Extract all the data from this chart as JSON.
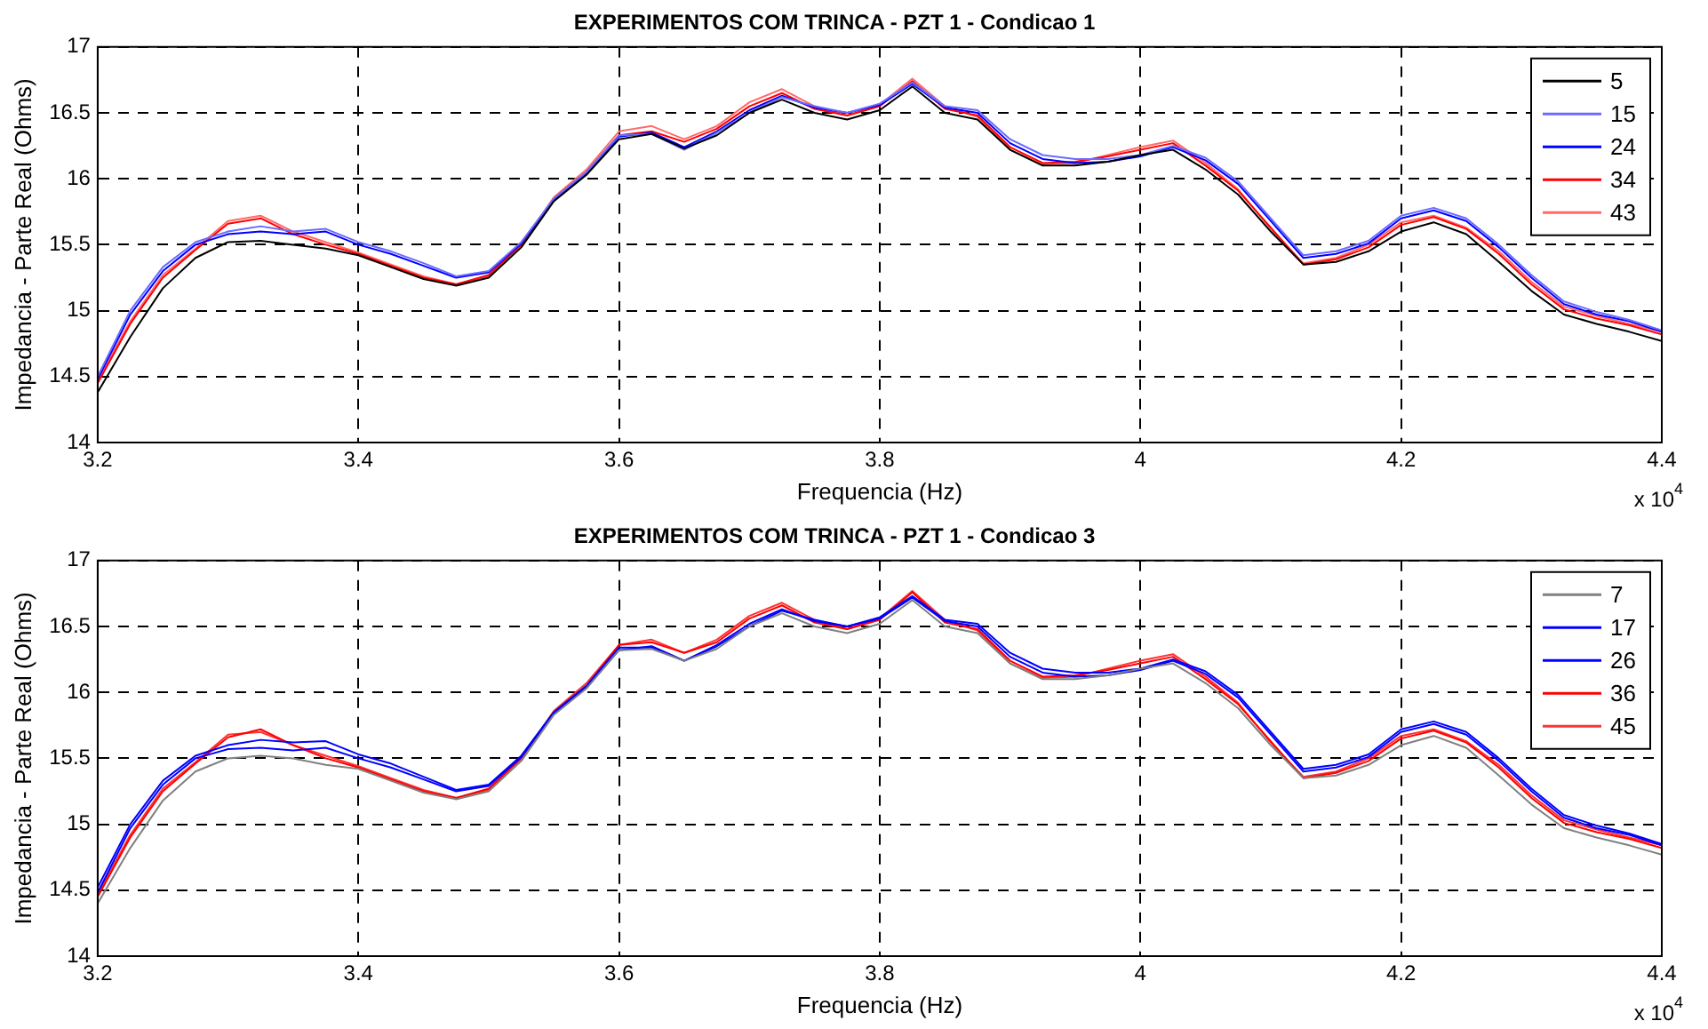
{
  "chart_data": [
    {
      "type": "line",
      "title": "EXPERIMENTOS COM TRINCA - PZT 1 - Condicao 1",
      "xlabel": "Frequencia (Hz)",
      "ylabel": "Impedancia - Parte Real (Ohms)",
      "x": [
        3.2,
        3.225,
        3.25,
        3.275,
        3.3,
        3.325,
        3.35,
        3.375,
        3.4,
        3.425,
        3.45,
        3.475,
        3.5,
        3.525,
        3.55,
        3.575,
        3.6,
        3.625,
        3.65,
        3.675,
        3.7,
        3.725,
        3.75,
        3.775,
        3.8,
        3.825,
        3.85,
        3.875,
        3.9,
        3.925,
        3.95,
        3.975,
        4,
        4.025,
        4.05,
        4.075,
        4.1,
        4.125,
        4.15,
        4.175,
        4.2,
        4.225,
        4.25,
        4.275,
        4.3,
        4.325,
        4.35,
        4.375,
        4.4
      ],
      "series": [
        {
          "name": "5",
          "color": "#000000",
          "values": [
            14.38,
            14.8,
            15.17,
            15.4,
            15.52,
            15.53,
            15.5,
            15.47,
            15.42,
            15.33,
            15.24,
            15.19,
            15.25,
            15.48,
            15.83,
            16.03,
            16.3,
            16.34,
            16.23,
            16.33,
            16.5,
            16.6,
            16.5,
            16.45,
            16.52,
            16.7,
            16.5,
            16.45,
            16.22,
            16.1,
            16.1,
            16.13,
            16.18,
            16.22,
            16.07,
            15.88,
            15.6,
            15.35,
            15.37,
            15.45,
            15.6,
            15.67,
            15.58,
            15.37,
            15.15,
            14.97,
            14.9,
            14.84,
            14.77
          ]
        },
        {
          "name": "15",
          "color": "#6b6bff",
          "values": [
            14.5,
            15.0,
            15.33,
            15.52,
            15.6,
            15.64,
            15.6,
            15.62,
            15.52,
            15.45,
            15.36,
            15.26,
            15.3,
            15.52,
            15.85,
            16.05,
            16.33,
            16.34,
            16.22,
            16.35,
            16.5,
            16.62,
            16.55,
            16.5,
            16.57,
            16.73,
            16.55,
            16.52,
            16.3,
            16.18,
            16.15,
            16.15,
            16.18,
            16.25,
            16.16,
            15.98,
            15.7,
            15.42,
            15.45,
            15.53,
            15.72,
            15.78,
            15.7,
            15.5,
            15.27,
            15.07,
            14.99,
            14.93,
            14.85
          ]
        },
        {
          "name": "24",
          "color": "#0000ff",
          "values": [
            14.48,
            14.97,
            15.3,
            15.5,
            15.58,
            15.6,
            15.58,
            15.6,
            15.5,
            15.43,
            15.34,
            15.25,
            15.29,
            15.51,
            15.84,
            16.04,
            16.32,
            16.35,
            16.24,
            16.36,
            16.52,
            16.63,
            16.54,
            16.5,
            16.56,
            16.72,
            16.54,
            16.5,
            16.27,
            16.15,
            16.12,
            16.13,
            16.17,
            16.24,
            16.14,
            15.96,
            15.68,
            15.4,
            15.43,
            15.51,
            15.7,
            15.76,
            15.68,
            15.48,
            15.25,
            15.05,
            14.97,
            14.92,
            14.84
          ]
        },
        {
          "name": "34",
          "color": "#ff0000",
          "values": [
            14.45,
            14.9,
            15.25,
            15.46,
            15.66,
            15.7,
            15.58,
            15.5,
            15.43,
            15.34,
            15.25,
            15.2,
            15.27,
            15.5,
            15.85,
            16.05,
            16.33,
            16.36,
            16.28,
            16.38,
            16.55,
            16.65,
            16.53,
            16.48,
            16.55,
            16.74,
            16.53,
            16.48,
            16.24,
            16.12,
            16.13,
            16.17,
            16.22,
            16.27,
            16.1,
            15.91,
            15.63,
            15.35,
            15.39,
            15.48,
            15.65,
            15.71,
            15.62,
            15.43,
            15.2,
            15.01,
            14.94,
            14.89,
            14.82
          ]
        },
        {
          "name": "43",
          "color": "#ff6b6b",
          "values": [
            14.47,
            14.92,
            15.27,
            15.47,
            15.68,
            15.72,
            15.6,
            15.52,
            15.44,
            15.35,
            15.26,
            15.2,
            15.26,
            15.5,
            15.86,
            16.07,
            16.36,
            16.4,
            16.3,
            16.4,
            16.58,
            16.68,
            16.55,
            16.48,
            16.56,
            16.76,
            16.55,
            16.47,
            16.22,
            16.11,
            16.12,
            16.18,
            16.24,
            16.29,
            16.12,
            15.92,
            15.62,
            15.36,
            15.4,
            15.5,
            15.67,
            15.72,
            15.63,
            15.45,
            15.22,
            15.03,
            14.96,
            14.9,
            14.84
          ]
        }
      ],
      "xlim": [
        3.2,
        4.4
      ],
      "xticks": [
        3.2,
        3.4,
        3.6,
        3.8,
        4,
        4.2,
        4.4
      ],
      "ylim": [
        14,
        17
      ],
      "yticks": [
        14,
        14.5,
        15,
        15.5,
        16,
        16.5,
        17
      ],
      "grid": true,
      "legend": "top right",
      "marker": "none",
      "line_style": "solid",
      "annotations": [
        "x 10$^{4}$"
      ]
    },
    {
      "type": "line",
      "title": "EXPERIMENTOS COM TRINCA - PZT 1 - Condicao 3",
      "xlabel": "Frequencia (Hz)",
      "ylabel": "Impedancia - Parte Real (Ohms)",
      "x": [
        3.2,
        3.225,
        3.25,
        3.275,
        3.3,
        3.325,
        3.35,
        3.375,
        3.4,
        3.425,
        3.45,
        3.475,
        3.5,
        3.525,
        3.55,
        3.575,
        3.6,
        3.625,
        3.65,
        3.675,
        3.7,
        3.725,
        3.75,
        3.775,
        3.8,
        3.825,
        3.85,
        3.875,
        3.9,
        3.925,
        3.95,
        3.975,
        4,
        4.025,
        4.05,
        4.075,
        4.1,
        4.125,
        4.15,
        4.175,
        4.2,
        4.225,
        4.25,
        4.275,
        4.3,
        4.325,
        4.35,
        4.375,
        4.4
      ],
      "series": [
        {
          "name": "7",
          "color": "#808080",
          "values": [
            14.4,
            14.82,
            15.18,
            15.4,
            15.5,
            15.52,
            15.5,
            15.45,
            15.42,
            15.33,
            15.24,
            15.19,
            15.25,
            15.48,
            15.83,
            16.03,
            16.32,
            16.33,
            16.24,
            16.33,
            16.5,
            16.6,
            16.5,
            16.45,
            16.52,
            16.7,
            16.5,
            16.45,
            16.22,
            16.1,
            16.1,
            16.13,
            16.18,
            16.22,
            16.07,
            15.88,
            15.6,
            15.35,
            15.37,
            15.45,
            15.6,
            15.67,
            15.58,
            15.37,
            15.15,
            14.97,
            14.9,
            14.84,
            14.77
          ]
        },
        {
          "name": "17",
          "color": "#0000ff",
          "values": [
            14.52,
            15.0,
            15.33,
            15.52,
            15.6,
            15.64,
            15.62,
            15.63,
            15.53,
            15.46,
            15.36,
            15.26,
            15.3,
            15.52,
            15.85,
            16.05,
            16.34,
            16.34,
            16.24,
            16.35,
            16.5,
            16.62,
            16.55,
            16.5,
            16.57,
            16.73,
            16.55,
            16.52,
            16.3,
            16.18,
            16.15,
            16.15,
            16.18,
            16.25,
            16.16,
            15.98,
            15.7,
            15.42,
            15.45,
            15.53,
            15.72,
            15.78,
            15.7,
            15.5,
            15.27,
            15.07,
            14.99,
            14.93,
            14.85
          ]
        },
        {
          "name": "26",
          "color": "#0000ff",
          "values": [
            14.48,
            14.97,
            15.3,
            15.5,
            15.57,
            15.58,
            15.56,
            15.58,
            15.5,
            15.43,
            15.34,
            15.25,
            15.29,
            15.51,
            15.84,
            16.04,
            16.32,
            16.35,
            16.24,
            16.36,
            16.52,
            16.63,
            16.54,
            16.5,
            16.56,
            16.72,
            16.54,
            16.5,
            16.27,
            16.15,
            16.12,
            16.13,
            16.17,
            16.24,
            16.14,
            15.96,
            15.68,
            15.4,
            15.43,
            15.51,
            15.7,
            15.76,
            15.68,
            15.48,
            15.25,
            15.05,
            14.97,
            14.92,
            14.84
          ]
        },
        {
          "name": "36",
          "color": "#ff0000",
          "values": [
            14.45,
            14.9,
            15.25,
            15.46,
            15.66,
            15.72,
            15.6,
            15.5,
            15.43,
            15.34,
            15.25,
            15.2,
            15.27,
            15.5,
            15.85,
            16.05,
            16.36,
            16.38,
            16.3,
            16.38,
            16.56,
            16.66,
            16.53,
            16.48,
            16.55,
            16.76,
            16.53,
            16.48,
            16.24,
            16.12,
            16.13,
            16.17,
            16.22,
            16.27,
            16.1,
            15.91,
            15.63,
            15.35,
            15.39,
            15.48,
            15.65,
            15.71,
            15.62,
            15.43,
            15.2,
            15.01,
            14.94,
            14.89,
            14.82
          ]
        },
        {
          "name": "45",
          "color": "#ff3333",
          "values": [
            14.47,
            14.92,
            15.27,
            15.47,
            15.68,
            15.7,
            15.6,
            15.52,
            15.44,
            15.35,
            15.26,
            15.2,
            15.26,
            15.5,
            15.86,
            16.07,
            16.36,
            16.4,
            16.3,
            16.4,
            16.58,
            16.68,
            16.55,
            16.48,
            16.56,
            16.77,
            16.55,
            16.47,
            16.22,
            16.11,
            16.12,
            16.18,
            16.24,
            16.29,
            16.12,
            15.92,
            15.62,
            15.36,
            15.4,
            15.5,
            15.67,
            15.72,
            15.63,
            15.45,
            15.22,
            15.03,
            14.96,
            14.9,
            14.84
          ]
        }
      ],
      "xlim": [
        3.2,
        4.4
      ],
      "xticks": [
        3.2,
        3.4,
        3.6,
        3.8,
        4,
        4.2,
        4.4
      ],
      "ylim": [
        14,
        17
      ],
      "yticks": [
        14,
        14.5,
        15,
        15.5,
        16,
        16.5,
        17
      ],
      "grid": true,
      "legend": "top right",
      "marker": "none",
      "line_style": "solid",
      "annotations": [
        "x 10$^{4}$"
      ]
    }
  ]
}
